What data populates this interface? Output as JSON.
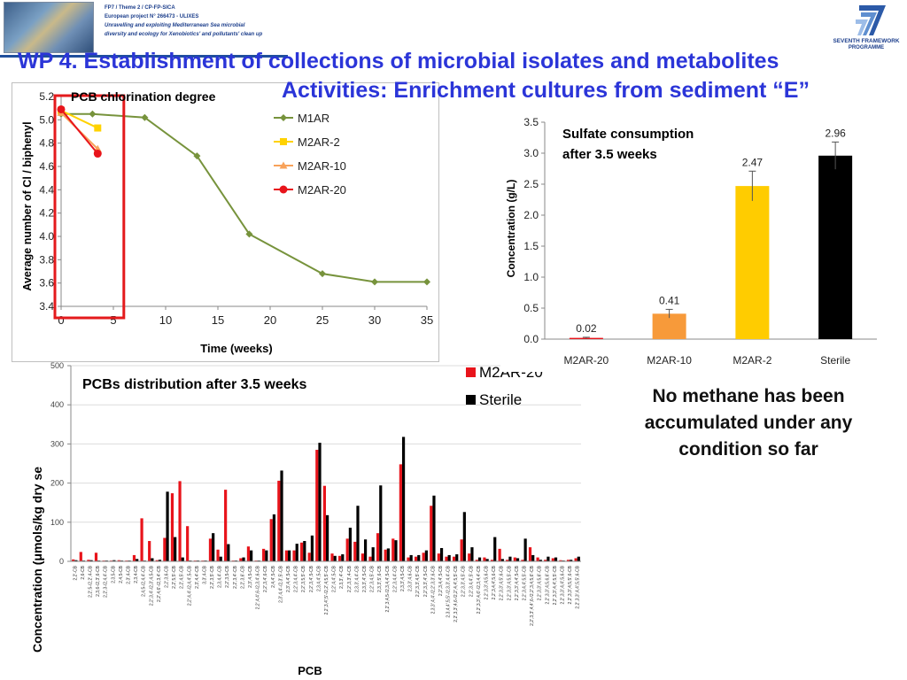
{
  "header": {
    "project_lines": [
      "FP7 / Theme 2 / CP-FP-SICA",
      "European project N° 266473 - ULIXES",
      "Unravelling and exploiting Mediterranean Sea microbial",
      "diversity and ecology for Xenobiotics' and pollutants' clean up"
    ],
    "fp7_label_1": "SEVENTH FRAMEWORK",
    "fp7_label_2": "PROGRAMME"
  },
  "slide": {
    "title_line1": "WP 4. Establishment of collections of microbial isolates and metabolites",
    "title_line2": "Activities: Enrichment cultures from sediment “E”",
    "note": "No methane has been accumulated under any condition so far"
  },
  "colors": {
    "title": "#2b35d8",
    "m1ar": "#77933c",
    "m2ar2": "#ffd200",
    "m2ar10": "#f8a25a",
    "m2ar20": "#e8141b",
    "highlight_box": "#e41a1c",
    "sterile": "#000000"
  },
  "chart_data": [
    {
      "type": "line",
      "title": "PCB chlorination degree",
      "xlabel": "Time (weeks)",
      "ylabel": "Average number of Cl / biphenyl",
      "xlim": [
        0,
        35
      ],
      "ylim": [
        3.4,
        5.2
      ],
      "xticks": [
        0,
        5,
        10,
        15,
        20,
        25,
        30,
        35
      ],
      "yticks": [
        "3.4",
        "3.6",
        "3.8",
        "4.0",
        "4.2",
        "4.4",
        "4.6",
        "4.8",
        "5.0",
        "5.2"
      ],
      "legend_position": "right",
      "highlight_range": [
        0,
        6
      ],
      "series": [
        {
          "name": "M1AR",
          "color": "#77933c",
          "marker": "diamond",
          "x": [
            0,
            3,
            8,
            13,
            18,
            25,
            30,
            35
          ],
          "y": [
            5.05,
            5.05,
            5.02,
            4.69,
            4.02,
            3.68,
            3.61,
            3.61
          ]
        },
        {
          "name": "M2AR-2",
          "color": "#ffd200",
          "marker": "square",
          "x": [
            0,
            3.5
          ],
          "y": [
            5.08,
            4.93
          ]
        },
        {
          "name": "M2AR-10",
          "color": "#f8a25a",
          "marker": "triangle",
          "x": [
            0,
            3.5
          ],
          "y": [
            5.06,
            4.75
          ]
        },
        {
          "name": "M2AR-20",
          "color": "#e8141b",
          "marker": "circle",
          "x": [
            0,
            3.5
          ],
          "y": [
            5.09,
            4.71
          ]
        }
      ]
    },
    {
      "type": "bar",
      "title": "Sulfate consumption after 3.5 weeks",
      "title_lines": [
        "Sulfate consumption",
        "after 3.5 weeks"
      ],
      "ylabel": "Concentration (g/L)",
      "ylim": [
        0,
        3.5
      ],
      "yticks": [
        "0.0",
        "0.5",
        "1.0",
        "1.5",
        "2.0",
        "2.5",
        "3.0",
        "3.5"
      ],
      "categories": [
        "M2AR-20",
        "M2AR-10",
        "M2AR-2",
        "Sterile"
      ],
      "values": [
        0.02,
        0.41,
        2.47,
        2.96
      ],
      "value_labels": [
        "0.02",
        "0.41",
        "2.47",
        "2.96"
      ],
      "errors": [
        0.01,
        0.07,
        0.24,
        0.22
      ],
      "colors": [
        "#e8141b",
        "#f79a3a",
        "#ffcc00",
        "#000000"
      ]
    },
    {
      "type": "bar",
      "title": "PCBs distribution after 3.5 weeks",
      "xlabel": "PCB",
      "ylabel": "Concentration (μmols/kg dry se",
      "ylim": [
        0,
        500
      ],
      "yticks": [
        "0",
        "100",
        "200",
        "300",
        "400",
        "500"
      ],
      "legend_position": "top-right",
      "categories": [
        "2,2'-CB",
        "2,6-CB",
        "2,2',5-/2,2',4-CB",
        "2,3,6-/2,3',6-CB",
        "2,2',3-/2,4,4'-CB",
        "2,3,5-CB",
        "2,4,5-CB",
        "2,3',4-CB",
        "2,3,4-CB",
        "2,4,5-/2,4,4'-CB",
        "2,2',3,4'-/2,3',4,5-CB",
        "2,2',4,6'-/2,3,4'-CB",
        "2,2',3,6-CB",
        "2,2',5,5'-CB",
        "2,2',4,5'-CB",
        "2,2',4,4'-/2,4,4',5-CB",
        "2,3',4,4'-CB",
        "3,3',4-CB",
        "2,2',3,5'-CB",
        "2,3,4,4'-CB",
        "2,2',3,5-CB",
        "2,2',3,4'-CB",
        "2,2',3,6'-CB",
        "2,3',4,5-CB",
        "2,2',4,4',6-/2,3,4',6-CB",
        "2,2',3,4',6-CB",
        "2,4,4',5-CB",
        "2,3',4,4'-/2,3',5'-CB",
        "2,3',4,4',5-CB",
        "2,2',3,4,4'-CB",
        "2,2',3,5,5'-CB",
        "2,2',3,4',5-CB",
        "2,3,4,4',5-CB",
        "2,2',3,4',5'-/2,2',4,5,5'-CB",
        "2,2',4,4',5-CB",
        "2,3,3',4'-CB",
        "2,2',3,3',4-CB",
        "2,3,3',4,4'-CB",
        "2,3,3',4',5-CB",
        "2,2',3,4,5'-CB",
        "2,3,3',5',6-CB",
        "2,2',3,4,5-/2,3,4,4',5-CB",
        "2,2',3,4,4'-CB",
        "2,3,3',4,5-CB",
        "2,3,3',4,6-CB",
        "2,2',3,3',4,5'-CB",
        "2,2',3,3',4',5-CB",
        "2,3,3',4,4'-/2,2',3,3',6-CB",
        "2,2',3,4,4',5-CB",
        "2,3,4,4',5,5'-/2,3,3',4,4'-CB",
        "2,2',3,3',4,6-/2,2',4,4',5,5'-CB",
        "2,2',3,3',4,5'-CB",
        "2,2',3,4,4',5'-CB",
        "2,2',3,3',4,6'-/2,3,4,4'-CB",
        "2,2',3,3',4,5,6-CB",
        "2,2',3,4,4',5,6-CB",
        "2,2',3,3',4,5',6-CB",
        "2,2',3,3',4,5,5'-CB",
        "2,2',3,3',4,4',5-CB",
        "2,2',3,4,4',5,5'-CB",
        "2,2',3,3',4,4',6-/2,2',3,4,5,6'-CB",
        "2,2',3,3',4,5,6'-CB",
        "2,2',3,3',4,5,6,6'-CB",
        "2,2',3,3',4,4',5,5'-CB",
        "2,2',3,3',4,4',5,6-CB",
        "2,2',3,3',4,5,5',6-CB",
        "2,2',3,3',4,4',5,5',6-CB"
      ],
      "series": [
        {
          "name": "M2AR-20",
          "color": "#e8141b",
          "values": [
            5,
            24,
            4,
            22,
            2,
            2,
            3,
            2,
            16,
            110,
            52,
            3,
            60,
            174,
            205,
            90,
            2,
            2,
            58,
            30,
            183,
            2,
            8,
            38,
            2,
            32,
            108,
            206,
            28,
            28,
            48,
            22,
            285,
            193,
            20,
            14,
            58,
            50,
            20,
            12,
            72,
            30,
            58,
            248,
            10,
            12,
            22,
            142,
            20,
            12,
            12,
            56,
            20,
            4,
            10,
            4,
            32,
            4,
            10,
            4,
            36,
            10,
            4,
            8,
            3,
            4,
            8
          ]
        },
        {
          "name": "Sterile",
          "color": "#000000",
          "values": [
            3,
            2,
            3,
            2,
            2,
            3,
            2,
            2,
            6,
            2,
            8,
            4,
            178,
            62,
            10,
            2,
            2,
            2,
            72,
            12,
            44,
            2,
            10,
            28,
            2,
            28,
            120,
            232,
            28,
            45,
            52,
            66,
            303,
            118,
            14,
            18,
            86,
            142,
            56,
            36,
            194,
            33,
            54,
            318,
            16,
            16,
            28,
            168,
            34,
            16,
            18,
            126,
            36,
            10,
            6,
            62,
            6,
            12,
            8,
            58,
            16,
            4,
            12,
            10,
            2,
            4,
            12
          ]
        }
      ]
    }
  ]
}
